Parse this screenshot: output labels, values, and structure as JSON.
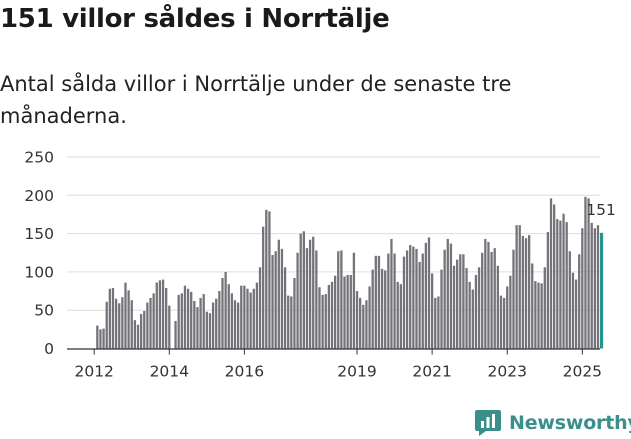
{
  "header": {
    "title": "151 villor såldes i Norrtälje",
    "subtitle": "Antal sålda villor i Norrtälje under de senaste tre månaderna."
  },
  "chart_data": {
    "type": "bar",
    "title": "151 villor såldes i Norrtälje",
    "subtitle": "Antal sålda villor i Norrtälje under de senaste tre månaderna.",
    "xlabel": "",
    "ylabel": "",
    "ylim": [
      0,
      250
    ],
    "yticks": [
      0,
      50,
      100,
      150,
      200,
      250
    ],
    "x_start": "2012-01",
    "x_tick_labels": [
      "2012",
      "2014",
      "2016",
      "2019",
      "2021",
      "2023",
      "2025"
    ],
    "x_tick_indices": [
      0,
      24,
      48,
      84,
      108,
      132,
      156
    ],
    "highlight_label": "151",
    "bar_color": "#757379",
    "highlight_color": "#23968d",
    "values": [
      0,
      30,
      25,
      26,
      61,
      78,
      79,
      65,
      59,
      67,
      86,
      76,
      63,
      37,
      31,
      45,
      49,
      60,
      66,
      72,
      86,
      89,
      90,
      79,
      56,
      0,
      36,
      70,
      72,
      82,
      78,
      74,
      62,
      54,
      66,
      71,
      48,
      46,
      60,
      65,
      75,
      92,
      100,
      84,
      72,
      63,
      60,
      82,
      82,
      78,
      73,
      78,
      86,
      106,
      159,
      181,
      179,
      122,
      127,
      142,
      130,
      106,
      69,
      68,
      92,
      125,
      150,
      153,
      131,
      142,
      146,
      128,
      80,
      70,
      71,
      83,
      87,
      95,
      127,
      128,
      94,
      96,
      96,
      125,
      75,
      66,
      57,
      63,
      81,
      103,
      121,
      121,
      104,
      102,
      124,
      143,
      124,
      87,
      84,
      120,
      128,
      135,
      133,
      130,
      113,
      124,
      138,
      145,
      98,
      66,
      68,
      103,
      129,
      143,
      137,
      108,
      116,
      123,
      123,
      105,
      87,
      77,
      96,
      106,
      125,
      143,
      139,
      126,
      131,
      108,
      69,
      66,
      81,
      95,
      129,
      161,
      161,
      147,
      144,
      148,
      111,
      88,
      86,
      85,
      106,
      152,
      196,
      188,
      169,
      167,
      176,
      165,
      127,
      99,
      90,
      123,
      157,
      198,
      196,
      164,
      157,
      161,
      151
    ]
  },
  "brand": {
    "name": "Newsworthy",
    "icon": "bar-chart-icon",
    "color": "#3a8f8a"
  }
}
